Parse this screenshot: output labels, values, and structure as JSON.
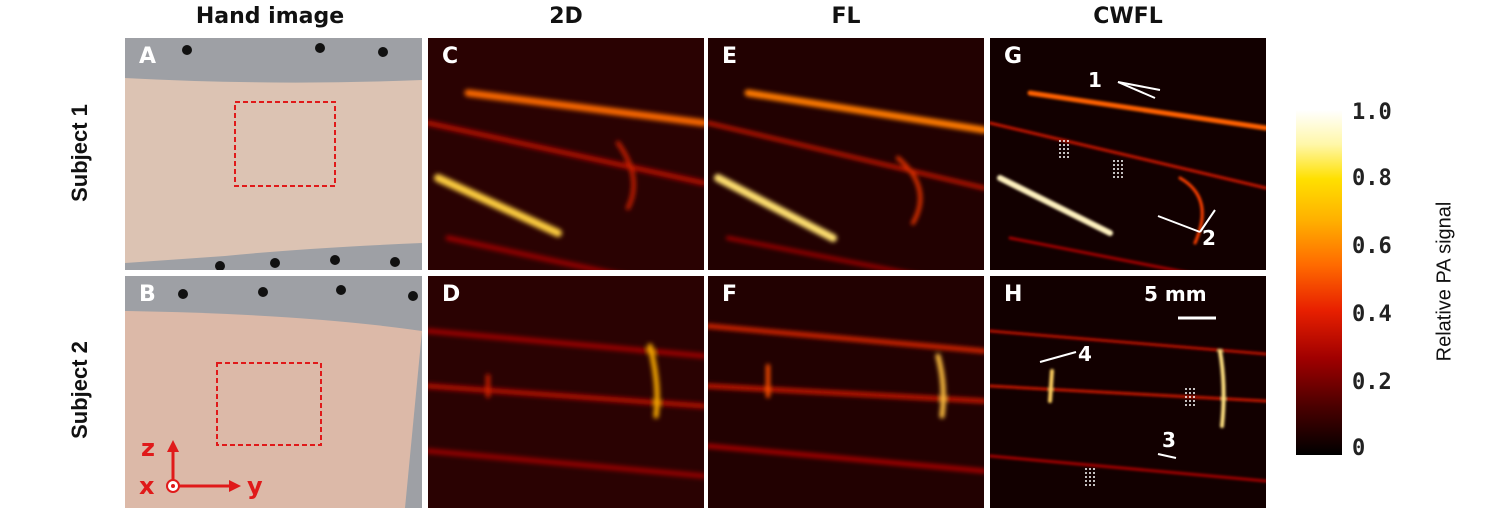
{
  "columns": {
    "hand": "Hand image",
    "twod": "2D",
    "fl": "FL",
    "cwfl": "CWFL"
  },
  "rows": {
    "subject1": "Subject 1",
    "subject2": "Subject 2"
  },
  "panels": {
    "A": "A",
    "B": "B",
    "C": "C",
    "D": "D",
    "E": "E",
    "F": "F",
    "G": "G",
    "H": "H"
  },
  "annotations": {
    "vessel1": "1",
    "vessel2": "2",
    "vessel3": "3",
    "vessel4": "4",
    "scale_bar": "5 mm"
  },
  "axes": {
    "z": "z",
    "x": "x",
    "y": "y"
  },
  "colorbar": {
    "title": "Relative PA signal",
    "ticks": [
      "1.0",
      "0.8",
      "0.6",
      "0.4",
      "0.2",
      "0"
    ],
    "colormap": "hot",
    "range": [
      0,
      1.0
    ]
  }
}
